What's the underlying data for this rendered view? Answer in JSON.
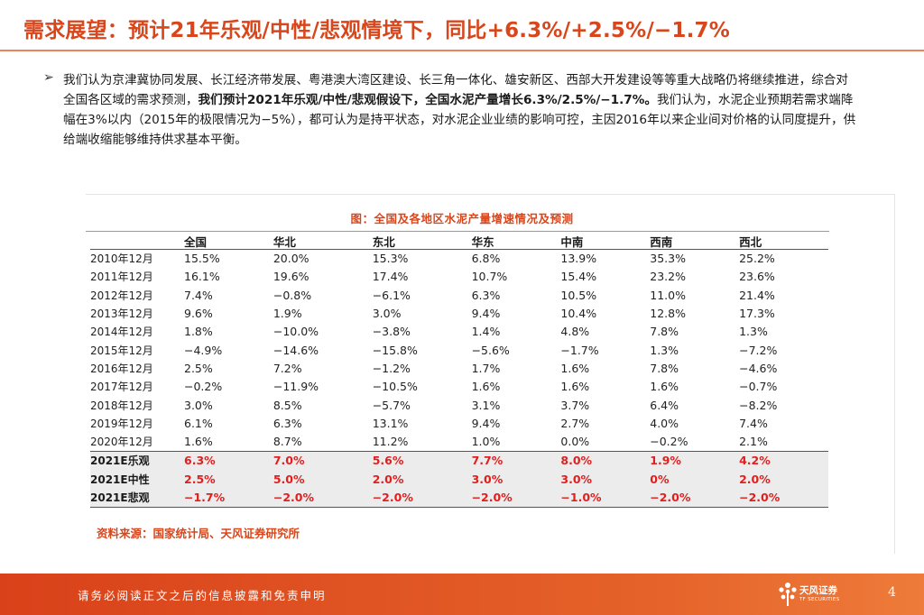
{
  "title": "需求展望：预计21年乐观/中性/悲观情境下，同比+6.3%/+2.5%/−1.7%",
  "bullet": {
    "marker": "➢",
    "text_1": "我们认为京津冀协同发展、长江经济带发展、粤港澳大湾区建设、长三角一体化、雄安新区、西部大开发建设等等重大战略仍将继续推进，综合对全国各区域的需求预测，",
    "text_bold": "我们预计2021年乐观/中性/悲观假设下，全国水泥产量增长6.3%/2.5%/−1.7%。",
    "text_2": "我们认为，水泥企业预期若需求端降幅在3%以内（2015年的极限情况为−5%），都可认为是持平状态，对水泥企业业绩的影响可控，主因2016年以来企业间对价格的认同度提升，供给端收缩能够维持供求基本平衡。"
  },
  "figure": {
    "title": "图：全国及各地区水泥产量增速情况及预测",
    "columns": [
      "",
      "全国",
      "华北",
      "东北",
      "华东",
      "中南",
      "西南",
      "西北"
    ],
    "rows": [
      {
        "label": "2010年12月",
        "values": [
          "15.5%",
          "20.0%",
          "15.3%",
          "6.8%",
          "13.9%",
          "35.3%",
          "25.2%"
        ]
      },
      {
        "label": "2011年12月",
        "values": [
          "16.1%",
          "19.6%",
          "17.4%",
          "10.7%",
          "15.4%",
          "23.2%",
          "23.6%"
        ]
      },
      {
        "label": "2012年12月",
        "values": [
          "7.4%",
          "−0.8%",
          "−6.1%",
          "6.3%",
          "10.5%",
          "11.0%",
          "21.4%"
        ]
      },
      {
        "label": "2013年12月",
        "values": [
          "9.6%",
          "1.9%",
          "3.0%",
          "9.4%",
          "10.4%",
          "12.8%",
          "17.3%"
        ]
      },
      {
        "label": "2014年12月",
        "values": [
          "1.8%",
          "−10.0%",
          "−3.8%",
          "1.4%",
          "4.8%",
          "7.8%",
          "1.3%"
        ]
      },
      {
        "label": "2015年12月",
        "values": [
          "−4.9%",
          "−14.6%",
          "−15.8%",
          "−5.6%",
          "−1.7%",
          "1.3%",
          "−7.2%"
        ]
      },
      {
        "label": "2016年12月",
        "values": [
          "2.5%",
          "7.2%",
          "−1.2%",
          "1.7%",
          "1.6%",
          "7.8%",
          "−4.6%"
        ]
      },
      {
        "label": "2017年12月",
        "values": [
          "−0.2%",
          "−11.9%",
          "−10.5%",
          "1.6%",
          "1.6%",
          "1.6%",
          "−0.7%"
        ]
      },
      {
        "label": "2018年12月",
        "values": [
          "3.0%",
          "8.5%",
          "−5.7%",
          "3.1%",
          "3.7%",
          "6.4%",
          "−8.2%"
        ]
      },
      {
        "label": "2019年12月",
        "values": [
          "6.1%",
          "6.3%",
          "13.1%",
          "9.4%",
          "2.7%",
          "4.0%",
          "7.4%"
        ]
      },
      {
        "label": "2020年12月",
        "values": [
          "1.6%",
          "8.7%",
          "11.2%",
          "1.0%",
          "0.0%",
          "−0.2%",
          "2.1%"
        ]
      }
    ],
    "projections": [
      {
        "label": "2021E乐观",
        "values": [
          "6.3%",
          "7.0%",
          "5.6%",
          "7.7%",
          "8.0%",
          "1.9%",
          "4.2%"
        ]
      },
      {
        "label": "2021E中性",
        "values": [
          "2.5%",
          "5.0%",
          "2.0%",
          "3.0%",
          "3.0%",
          "0%",
          "2.0%"
        ]
      },
      {
        "label": "2021E悲观",
        "values": [
          "−1.7%",
          "−2.0%",
          "−2.0%",
          "−2.0%",
          "−1.0%",
          "−2.0%",
          "−2.0%"
        ]
      }
    ],
    "source": "资料来源：国家统计局、天风证券研究所"
  },
  "footer": {
    "disclaimer": "请务必阅读正文之后的信息披露和免责申明",
    "logo_text": "天风证券",
    "logo_sub": "TF SECURITIES",
    "page_number": "4"
  },
  "colors": {
    "accent": "#d8461c",
    "projection_value": "#e01f1f",
    "projection_bg": "#ececec"
  }
}
